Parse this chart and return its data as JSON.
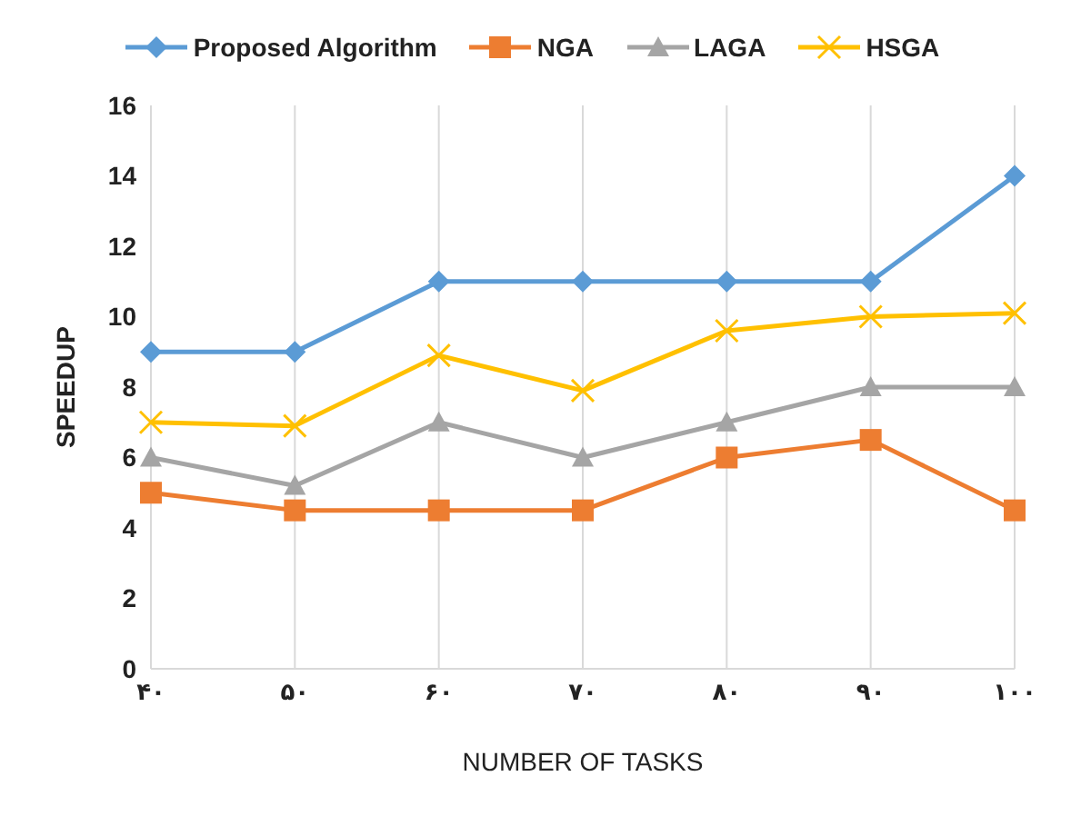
{
  "chart_data": {
    "type": "line",
    "xlabel": "NUMBER OF TASKS",
    "ylabel": "SPEEDUP",
    "categories": [
      "۴۰",
      "۵۰",
      "۶۰",
      "۷۰",
      "۸۰",
      "۹۰",
      "۱۰۰"
    ],
    "series": [
      {
        "name": "Proposed Algorithm",
        "color": "#5b9bd5",
        "marker": "diamond",
        "values": [
          9,
          9,
          11,
          11,
          11,
          11,
          14
        ]
      },
      {
        "name": "NGA",
        "color": "#ed7d31",
        "marker": "square",
        "values": [
          5,
          4.5,
          4.5,
          4.5,
          6,
          6.5,
          4.5
        ]
      },
      {
        "name": "LAGA",
        "color": "#a5a5a5",
        "marker": "triangle",
        "values": [
          6,
          5.2,
          7,
          6,
          7,
          8,
          8
        ]
      },
      {
        "name": "HSGA",
        "color": "#ffc000",
        "marker": "cross",
        "values": [
          7,
          6.9,
          8.9,
          7.9,
          9.6,
          10,
          10.1
        ]
      }
    ],
    "ylim": [
      0,
      16
    ],
    "yticks": [
      0,
      2,
      4,
      6,
      8,
      10,
      12,
      14,
      16
    ],
    "grid": "x",
    "legend": "top"
  }
}
